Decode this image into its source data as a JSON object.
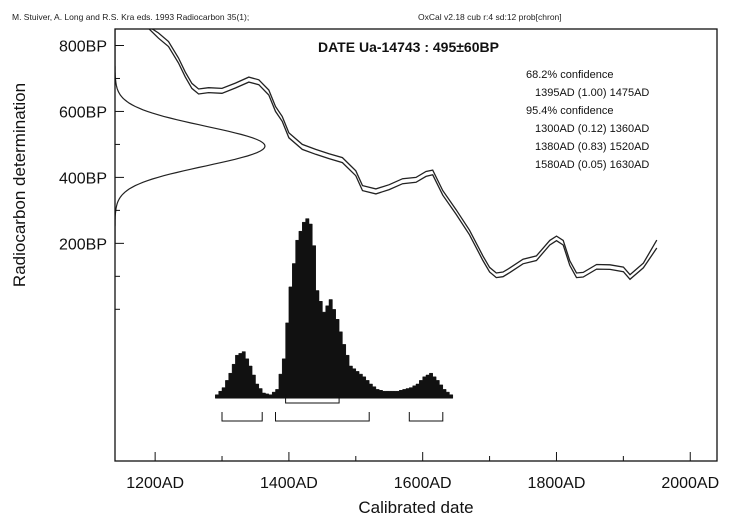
{
  "header": {
    "left": "M. Stuiver, A. Long and R.S. Kra eds. 1993 Radiocarbon 35(1);",
    "right": "OxCal v2.18 cub r:4 sd:12 prob[chron]"
  },
  "chart_data": {
    "type": "line",
    "title": "DATE Ua-14743 : 495±60BP",
    "xlabel": "Calibrated date",
    "ylabel": "Radiocarbon determination",
    "xlim": [
      1140,
      2040
    ],
    "ylim": [
      -460,
      850
    ],
    "x_ticks": [
      {
        "value": 1200,
        "label": "1200AD"
      },
      {
        "value": 1400,
        "label": "1400AD"
      },
      {
        "value": 1600,
        "label": "1600AD"
      },
      {
        "value": 1800,
        "label": "1800AD"
      },
      {
        "value": 2000,
        "label": "2000AD"
      }
    ],
    "y_ticks": [
      {
        "value": 800,
        "label": "800BP"
      },
      {
        "value": 600,
        "label": "600BP"
      },
      {
        "value": 400,
        "label": "400BP"
      },
      {
        "value": 200,
        "label": "200BP"
      }
    ],
    "calibration_curve": {
      "x": [
        1190,
        1205,
        1220,
        1235,
        1245,
        1255,
        1265,
        1280,
        1300,
        1320,
        1340,
        1355,
        1370,
        1380,
        1390,
        1400,
        1420,
        1440,
        1460,
        1480,
        1500,
        1510,
        1530,
        1550,
        1570,
        1590,
        1605,
        1615,
        1630,
        1650,
        1670,
        1690,
        1700,
        1710,
        1720,
        1730,
        1750,
        1770,
        1790,
        1800,
        1810,
        1820,
        1830,
        1840,
        1860,
        1880,
        1900,
        1910,
        1930,
        1950
      ],
      "upper": [
        858,
        838,
        812,
        762,
        720,
        685,
        668,
        672,
        670,
        686,
        704,
        696,
        665,
        615,
        585,
        535,
        500,
        485,
        472,
        460,
        420,
        375,
        365,
        378,
        396,
        400,
        418,
        422,
        360,
        302,
        240,
        162,
        127,
        110,
        113,
        125,
        152,
        162,
        209,
        222,
        209,
        147,
        110,
        112,
        136,
        135,
        128,
        105,
        140,
        210
      ],
      "lower": [
        852,
        822,
        797,
        747,
        705,
        670,
        653,
        657,
        655,
        671,
        689,
        681,
        650,
        600,
        570,
        520,
        485,
        470,
        457,
        445,
        405,
        360,
        350,
        363,
        381,
        385,
        403,
        408,
        346,
        288,
        226,
        148,
        113,
        96,
        99,
        111,
        138,
        148,
        195,
        208,
        195,
        133,
        96,
        98,
        122,
        121,
        114,
        91,
        126,
        186
      ]
    },
    "radiocarbon_distribution": {
      "mean_bp": 495,
      "sd_bp": 60,
      "note": "Normal curve drawn along the left axis"
    },
    "calibrated_distribution": {
      "x": [
        1290,
        1300,
        1310,
        1320,
        1330,
        1340,
        1350,
        1360,
        1370,
        1380,
        1390,
        1400,
        1410,
        1420,
        1425,
        1430,
        1435,
        1440,
        1450,
        1460,
        1470,
        1480,
        1490,
        1500,
        1510,
        1520,
        1530,
        1540,
        1560,
        1580,
        1590,
        1600,
        1610,
        1620,
        1630,
        1640
      ],
      "y": [
        0.02,
        0.06,
        0.14,
        0.24,
        0.26,
        0.18,
        0.08,
        0.03,
        0.02,
        0.05,
        0.22,
        0.62,
        0.88,
        0.98,
        1.0,
        0.97,
        0.85,
        0.6,
        0.48,
        0.55,
        0.44,
        0.3,
        0.18,
        0.15,
        0.12,
        0.08,
        0.05,
        0.04,
        0.04,
        0.06,
        0.08,
        0.12,
        0.14,
        0.1,
        0.05,
        0.02
      ]
    },
    "confidence": {
      "sigma1": {
        "label": "68.2% confidence",
        "ranges": [
          "1395AD (1.00) 1475AD"
        ],
        "intervals": [
          [
            1395,
            1475
          ]
        ]
      },
      "sigma2": {
        "label": "95.4% confidence",
        "ranges": [
          "1300AD (0.12) 1360AD",
          "1380AD (0.83) 1520AD",
          "1580AD (0.05) 1630AD"
        ],
        "intervals": [
          [
            1300,
            1360
          ],
          [
            1380,
            1520
          ],
          [
            1580,
            1630
          ]
        ]
      }
    }
  }
}
